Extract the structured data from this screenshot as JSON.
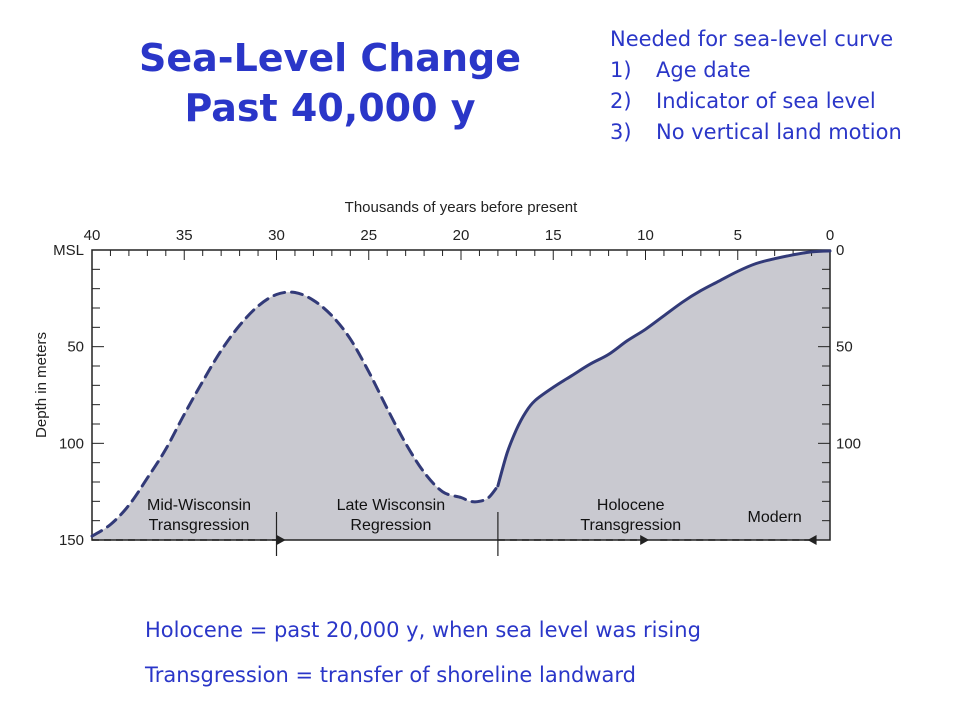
{
  "colors": {
    "text_accent": "#2a36c8",
    "plot_fill": "#c9c9d0",
    "curve": "#323a78",
    "axis": "#222222"
  },
  "title": {
    "line1": "Sea-Level Change",
    "line2": "Past 40,000 y"
  },
  "requirements": {
    "heading": "Needed for sea-level curve",
    "items": [
      {
        "num": "1)",
        "text": "Age date"
      },
      {
        "num": "2)",
        "text": "Indicator of sea level"
      },
      {
        "num": "3)",
        "text": "No vertical land motion"
      }
    ]
  },
  "definitions": [
    "Holocene = past 20,000 y, when sea level was rising",
    "Transgression = transfer of shoreline landward"
  ],
  "chart_data": {
    "type": "area",
    "xlabel": "Thousands of years before present",
    "ylabel": "Depth in meters",
    "xlim": [
      40,
      0
    ],
    "ylim": [
      0,
      150
    ],
    "x_ticks": [
      "40",
      "35",
      "30",
      "25",
      "20",
      "15",
      "10",
      "5",
      "0"
    ],
    "y_ticks_left": [
      "MSL",
      "50",
      "100",
      "150"
    ],
    "y_ticks_right": [
      "0",
      "50",
      "100"
    ],
    "series": [
      {
        "style": "dashed",
        "x": [
          40,
          39,
          38,
          37,
          36,
          35,
          34,
          33,
          32,
          31,
          30,
          29,
          28,
          27,
          26,
          25,
          24,
          23,
          22,
          21,
          20,
          19.5,
          19,
          18.5,
          18
        ],
        "y": [
          148,
          142,
          132,
          118,
          103,
          85,
          68,
          52,
          39,
          29,
          23,
          22,
          26,
          34,
          46,
          63,
          82,
          100,
          115,
          125,
          128,
          130,
          130,
          128,
          122
        ]
      },
      {
        "style": "solid",
        "x": [
          18,
          17.5,
          17,
          16.5,
          16,
          15,
          14,
          13,
          12,
          11,
          10,
          9,
          8,
          7,
          6,
          5,
          4,
          3,
          2,
          1,
          0
        ],
        "y": [
          122,
          105,
          93,
          84,
          78,
          71,
          65,
          59,
          54,
          47,
          41,
          34,
          27,
          21,
          16,
          11,
          7,
          4.5,
          2.5,
          1,
          0.5
        ]
      }
    ],
    "periods": [
      {
        "line1": "Mid-Wisconsin",
        "line2": "Transgression",
        "from": 40,
        "to": 30
      },
      {
        "line1": "Late Wisconsin",
        "line2": "Regression",
        "from": 30,
        "to": 18
      },
      {
        "line1": "Holocene",
        "line2": "Transgression",
        "from": 18,
        "to": 4
      },
      {
        "line1": "Modern",
        "line2": "",
        "from": 7,
        "to": 4
      }
    ]
  }
}
